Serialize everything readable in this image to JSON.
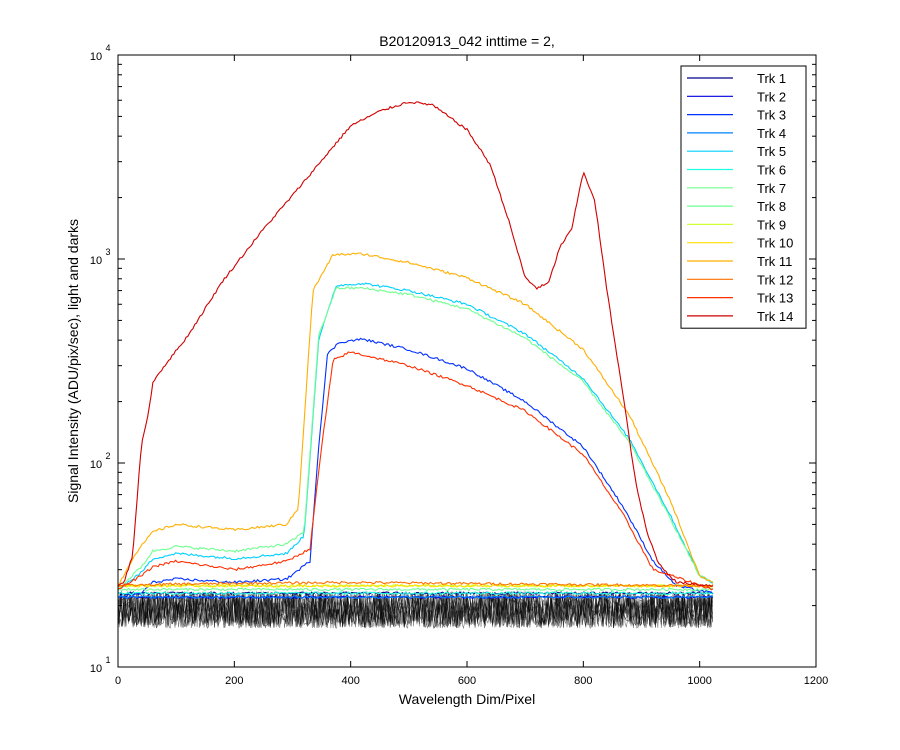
{
  "chart_data": {
    "type": "line",
    "title": "B20120913_042 inttime = 2,",
    "xlabel": "Wavelength Dim/Pixel",
    "ylabel": "Signal Intensity (ADU/pix/sec), light and darks",
    "xlim": [
      0,
      1200
    ],
    "ylim": [
      10,
      10000
    ],
    "yscale": "log",
    "grid": false,
    "legend_position": "top-right",
    "x_ticks": [
      0,
      200,
      400,
      600,
      800,
      1000,
      1200
    ],
    "y_ticks": [
      {
        "value": 10,
        "base": "10",
        "exp": "1"
      },
      {
        "value": 100,
        "base": "10",
        "exp": "2"
      },
      {
        "value": 1000,
        "base": "10",
        "exp": "3"
      },
      {
        "value": 10000,
        "base": "10",
        "exp": "4"
      }
    ],
    "dark_band": {
      "x_range": [
        0,
        1023
      ],
      "y_range": [
        15.5,
        23.5
      ],
      "color": "#000000"
    },
    "series": [
      {
        "name": "Trk 1",
        "color": "#00008f",
        "points": [
          [
            0,
            23
          ],
          [
            1023,
            23
          ]
        ]
      },
      {
        "name": "Trk 2",
        "color": "#0000df",
        "points": [
          [
            0,
            22
          ],
          [
            1023,
            22
          ]
        ]
      },
      {
        "name": "Trk 3",
        "color": "#0030ff",
        "points": [
          [
            0,
            22
          ],
          [
            40,
            23
          ],
          [
            60,
            26
          ],
          [
            100,
            27
          ],
          [
            200,
            26
          ],
          [
            290,
            27
          ],
          [
            330,
            33
          ],
          [
            345,
            120
          ],
          [
            360,
            340
          ],
          [
            380,
            390
          ],
          [
            420,
            405
          ],
          [
            500,
            360
          ],
          [
            600,
            290
          ],
          [
            700,
            200
          ],
          [
            800,
            120
          ],
          [
            870,
            60
          ],
          [
            920,
            33
          ],
          [
            960,
            25
          ],
          [
            1023,
            23
          ]
        ]
      },
      {
        "name": "Trk 4",
        "color": "#0080ff",
        "points": [
          [
            0,
            22
          ],
          [
            1023,
            22
          ]
        ]
      },
      {
        "name": "Trk 5",
        "color": "#00cfff",
        "points": [
          [
            0,
            24
          ],
          [
            40,
            29
          ],
          [
            60,
            34
          ],
          [
            100,
            36
          ],
          [
            200,
            34
          ],
          [
            290,
            36
          ],
          [
            320,
            44
          ],
          [
            345,
            400
          ],
          [
            375,
            740
          ],
          [
            420,
            760
          ],
          [
            500,
            700
          ],
          [
            600,
            600
          ],
          [
            700,
            430
          ],
          [
            800,
            260
          ],
          [
            880,
            130
          ],
          [
            950,
            55
          ],
          [
            1000,
            28
          ],
          [
            1023,
            26
          ]
        ]
      },
      {
        "name": "Trk 6",
        "color": "#20ffdf",
        "points": [
          [
            0,
            23
          ],
          [
            1023,
            23
          ]
        ]
      },
      {
        "name": "Trk 7",
        "color": "#70ff8f",
        "points": [
          [
            0,
            24
          ],
          [
            40,
            31
          ],
          [
            60,
            37
          ],
          [
            100,
            39
          ],
          [
            200,
            37
          ],
          [
            290,
            40
          ],
          [
            320,
            46
          ],
          [
            345,
            420
          ],
          [
            375,
            720
          ],
          [
            420,
            720
          ],
          [
            500,
            670
          ],
          [
            600,
            570
          ],
          [
            700,
            410
          ],
          [
            800,
            250
          ],
          [
            880,
            125
          ],
          [
            950,
            53
          ],
          [
            1000,
            28
          ],
          [
            1023,
            26
          ]
        ]
      },
      {
        "name": "Trk 8",
        "color": "#70ff8f",
        "points": [
          [
            0,
            24
          ],
          [
            1023,
            24
          ]
        ]
      },
      {
        "name": "Trk 9",
        "color": "#cfff30",
        "points": [
          [
            0,
            25
          ],
          [
            1023,
            25
          ]
        ]
      },
      {
        "name": "Trk 10",
        "color": "#ffdf00",
        "points": [
          [
            0,
            25
          ],
          [
            1023,
            25
          ]
        ]
      },
      {
        "name": "Trk 11",
        "color": "#ffaf00",
        "points": [
          [
            0,
            25
          ],
          [
            30,
            36
          ],
          [
            60,
            46
          ],
          [
            100,
            50
          ],
          [
            200,
            47
          ],
          [
            290,
            50
          ],
          [
            310,
            60
          ],
          [
            335,
            700
          ],
          [
            370,
            1050
          ],
          [
            420,
            1060
          ],
          [
            500,
            960
          ],
          [
            600,
            810
          ],
          [
            700,
            600
          ],
          [
            800,
            360
          ],
          [
            880,
            170
          ],
          [
            950,
            65
          ],
          [
            1000,
            28
          ],
          [
            1023,
            26
          ]
        ]
      },
      {
        "name": "Trk 12",
        "color": "#ff7000",
        "points": [
          [
            0,
            25
          ],
          [
            100,
            25.5
          ],
          [
            400,
            26
          ],
          [
            700,
            25.5
          ],
          [
            1023,
            25
          ]
        ]
      },
      {
        "name": "Trk 13",
        "color": "#ff3000",
        "points": [
          [
            0,
            24
          ],
          [
            40,
            28
          ],
          [
            60,
            31
          ],
          [
            100,
            33
          ],
          [
            200,
            30
          ],
          [
            290,
            33
          ],
          [
            330,
            38
          ],
          [
            350,
            120
          ],
          [
            370,
            320
          ],
          [
            400,
            350
          ],
          [
            500,
            300
          ],
          [
            600,
            240
          ],
          [
            700,
            180
          ],
          [
            800,
            110
          ],
          [
            870,
            55
          ],
          [
            920,
            30
          ],
          [
            1023,
            24
          ]
        ]
      },
      {
        "name": "Trk 14",
        "color": "#cf0000",
        "points": [
          [
            0,
            25
          ],
          [
            10,
            26
          ],
          [
            25,
            35
          ],
          [
            40,
            120
          ],
          [
            55,
            195
          ],
          [
            60,
            250
          ],
          [
            80,
            300
          ],
          [
            120,
            420
          ],
          [
            180,
            780
          ],
          [
            250,
            1400
          ],
          [
            300,
            2050
          ],
          [
            400,
            4500
          ],
          [
            450,
            5300
          ],
          [
            500,
            5900
          ],
          [
            540,
            5700
          ],
          [
            600,
            4300
          ],
          [
            640,
            2900
          ],
          [
            670,
            1600
          ],
          [
            700,
            810
          ],
          [
            720,
            720
          ],
          [
            740,
            760
          ],
          [
            760,
            1150
          ],
          [
            780,
            1400
          ],
          [
            800,
            2700
          ],
          [
            820,
            1900
          ],
          [
            840,
            720
          ],
          [
            870,
            200
          ],
          [
            890,
            80
          ],
          [
            910,
            45
          ],
          [
            930,
            32
          ],
          [
            960,
            26
          ],
          [
            1023,
            25
          ]
        ]
      }
    ]
  }
}
